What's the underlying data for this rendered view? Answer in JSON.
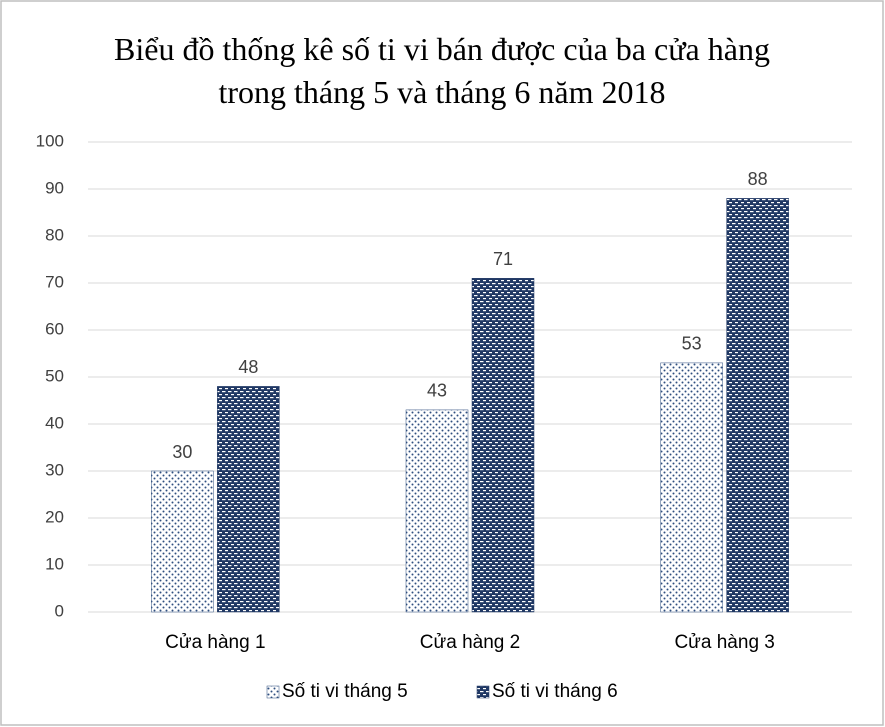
{
  "chart_data": {
    "type": "bar",
    "title": "Biểu đồ thống kê số ti vi bán được của ba cửa hàng trong tháng 5 và tháng 6 năm 2018",
    "categories": [
      "Cửa hàng 1",
      "Cửa hàng 2",
      "Cửa hàng 3"
    ],
    "series": [
      {
        "name": "Số ti vi tháng 5",
        "color": "#2f4f7f",
        "values": [
          30,
          43,
          53
        ]
      },
      {
        "name": "Số ti vi tháng 6",
        "color": "#203864",
        "values": [
          48,
          71,
          88
        ]
      }
    ],
    "ylim": [
      0,
      100
    ],
    "yticks": [
      0,
      10,
      20,
      30,
      40,
      50,
      60,
      70,
      80,
      90,
      100
    ],
    "grid": true,
    "legend": "bottom"
  }
}
